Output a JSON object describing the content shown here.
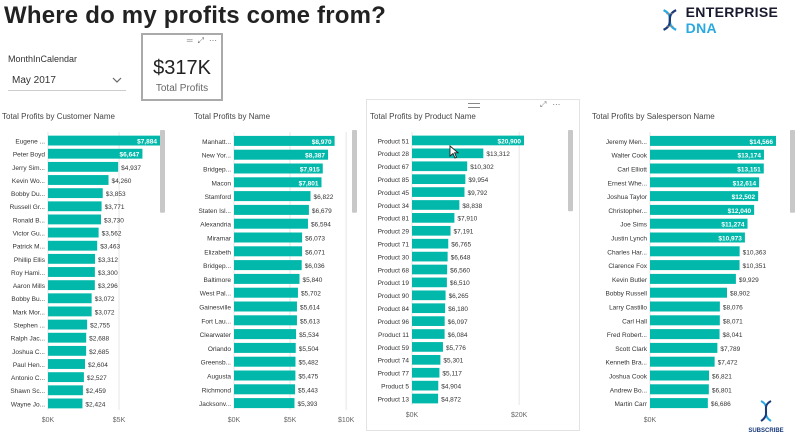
{
  "page": {
    "title": "Where do my profits come from?",
    "logo": {
      "word1": "ENTERPRISE",
      "word2": "DNA"
    }
  },
  "slicer": {
    "label": "MonthInCalendar",
    "value": "May 2017"
  },
  "card": {
    "value": "$317K",
    "label": "Total Profits"
  },
  "colors": {
    "bar": "#01b8aa",
    "label_in": "#ffffff",
    "label_out": "#333333"
  },
  "icons": [
    "dna-icon",
    "focus-mode-icon",
    "more-options-icon",
    "drag-handle-icon",
    "mouse-cursor-icon",
    "chevron-down-icon"
  ],
  "subscribe": "SUBSCRIBE",
  "chart_data": [
    {
      "type": "bar",
      "orientation": "horizontal",
      "title": "Total Profits by Customer Name",
      "categories": [
        "Eugene ...",
        "Peter Boyd",
        "Jerry Sim...",
        "Kevin Wo...",
        "Bobby Du...",
        "Russell Gr...",
        "Ronald B...",
        "Victor Gu...",
        "Patrick M...",
        "Phillip Ellis",
        "Roy Hami...",
        "Aaron Mills",
        "Bobby Bu...",
        "Mark Mor...",
        "Stephen ...",
        "Ralph Jac...",
        "Joshua C...",
        "Paul Hen...",
        "Antonio C...",
        "Shawn Sc...",
        "Wayne Jo..."
      ],
      "values": [
        7884,
        6647,
        4937,
        4260,
        3853,
        3771,
        3730,
        3562,
        3463,
        3312,
        3300,
        3296,
        3072,
        3072,
        2755,
        2688,
        2685,
        2604,
        2527,
        2459,
        2424
      ],
      "labels": [
        "$7,884",
        "$6,647",
        "$4,937",
        "$4,260",
        "$3,853",
        "$3,771",
        "$3,730",
        "$3,562",
        "$3,463",
        "$3,312",
        "$3,300",
        "$3,296",
        "$3,072",
        "$3,072",
        "$2,755",
        "$2,688",
        "$2,685",
        "$2,604",
        "$2,527",
        "$2,459",
        "$2,424"
      ],
      "xticks": [
        {
          "v": 0,
          "t": "$0K"
        },
        {
          "v": 5000,
          "t": "$5K"
        }
      ],
      "xlim": [
        0,
        7884
      ]
    },
    {
      "type": "bar",
      "orientation": "horizontal",
      "title": "Total Profits by Name",
      "categories": [
        "Manhatt...",
        "New Yor...",
        "Bridgep...",
        "Macon",
        "Stamford",
        "Staten Isl...",
        "Alexandria",
        "Miramar",
        "Elizabeth",
        "Bridgep...",
        "Baltimore",
        "West Pal...",
        "Gainesville",
        "Fort Lau...",
        "Clearwater",
        "Orlando",
        "Greensb...",
        "Augusta",
        "Richmond",
        "Jacksonv..."
      ],
      "values": [
        8970,
        8387,
        7915,
        7801,
        6822,
        6679,
        6594,
        6073,
        6071,
        6036,
        5840,
        5702,
        5614,
        5613,
        5534,
        5504,
        5482,
        5475,
        5443,
        5393
      ],
      "labels": [
        "$8,970",
        "$8,387",
        "$7,915",
        "$7,801",
        "$6,822",
        "$6,679",
        "$6,594",
        "$6,073",
        "$6,071",
        "$6,036",
        "$5,840",
        "$5,702",
        "$5,614",
        "$5,613",
        "$5,534",
        "$5,504",
        "$5,482",
        "$5,475",
        "$5,443",
        "$5,393"
      ],
      "xticks": [
        {
          "v": 0,
          "t": "$0K"
        },
        {
          "v": 5000,
          "t": "$5K"
        },
        {
          "v": 10000,
          "t": "$10K"
        }
      ],
      "xlim": [
        0,
        10700
      ]
    },
    {
      "type": "bar",
      "orientation": "horizontal",
      "title": "Total Profits by Product Name",
      "categories": [
        "Product 51",
        "Product 28",
        "Product 67",
        "Product 85",
        "Product 45",
        "Product 34",
        "Product 81",
        "Product 29",
        "Product 71",
        "Product 30",
        "Product 68",
        "Product 19",
        "Product 90",
        "Product 84",
        "Product 96",
        "Product 11",
        "Product 59",
        "Product 74",
        "Product 77",
        "Product 5",
        "Product 13"
      ],
      "values": [
        20900,
        13312,
        10302,
        9954,
        9792,
        8838,
        7910,
        7191,
        6765,
        6648,
        6560,
        6510,
        6265,
        6180,
        6097,
        6084,
        5776,
        5301,
        5117,
        4904,
        4872
      ],
      "labels": [
        "$20,900",
        "$13,312",
        "$10,302",
        "$9,954",
        "$9,792",
        "$8,838",
        "$7,910",
        "$7,191",
        "$6,765",
        "$6,648",
        "$6,560",
        "$6,510",
        "$6,265",
        "$6,180",
        "$6,097",
        "$6,084",
        "$5,776",
        "$5,301",
        "$5,117",
        "$4,904",
        "$4,872"
      ],
      "xticks": [
        {
          "v": 0,
          "t": "$0K"
        },
        {
          "v": 20000,
          "t": "$20K"
        }
      ],
      "xlim": [
        0,
        20900
      ]
    },
    {
      "type": "bar",
      "orientation": "horizontal",
      "title": "Total Profits by Salesperson Name",
      "categories": [
        "Jeremy Men...",
        "Walter Cook",
        "Carl Elliott",
        "Ernest Whe...",
        "Joshua Taylor",
        "Christopher...",
        "Joe Sims",
        "Justin Lynch",
        "Charles Har...",
        "Clarence Fox",
        "Kevin Butler",
        "Bobby Russell",
        "Larry Castillo",
        "Carl Hall",
        "Fred Robert...",
        "Scott Clark",
        "Kenneth Bra...",
        "Joshua Cook",
        "Andrew Bo...",
        "Martin Carr"
      ],
      "values": [
        14566,
        13174,
        13151,
        12614,
        12502,
        12040,
        11274,
        10973,
        10363,
        10351,
        9929,
        8902,
        8076,
        8071,
        8041,
        7789,
        7472,
        6821,
        6801,
        6686
      ],
      "labels": [
        "$14,566",
        "$13,174",
        "$13,151",
        "$12,614",
        "$12,502",
        "$12,040",
        "$11,274",
        "$10,973",
        "$10,363",
        "$10,351",
        "$9,929",
        "$8,902",
        "$8,076",
        "$8,071",
        "$8,041",
        "$7,789",
        "$7,472",
        "$6,821",
        "$6,801",
        "$6,686"
      ],
      "xticks": [
        {
          "v": 0,
          "t": "$0K"
        }
      ],
      "xlim": [
        0,
        14566
      ]
    }
  ]
}
